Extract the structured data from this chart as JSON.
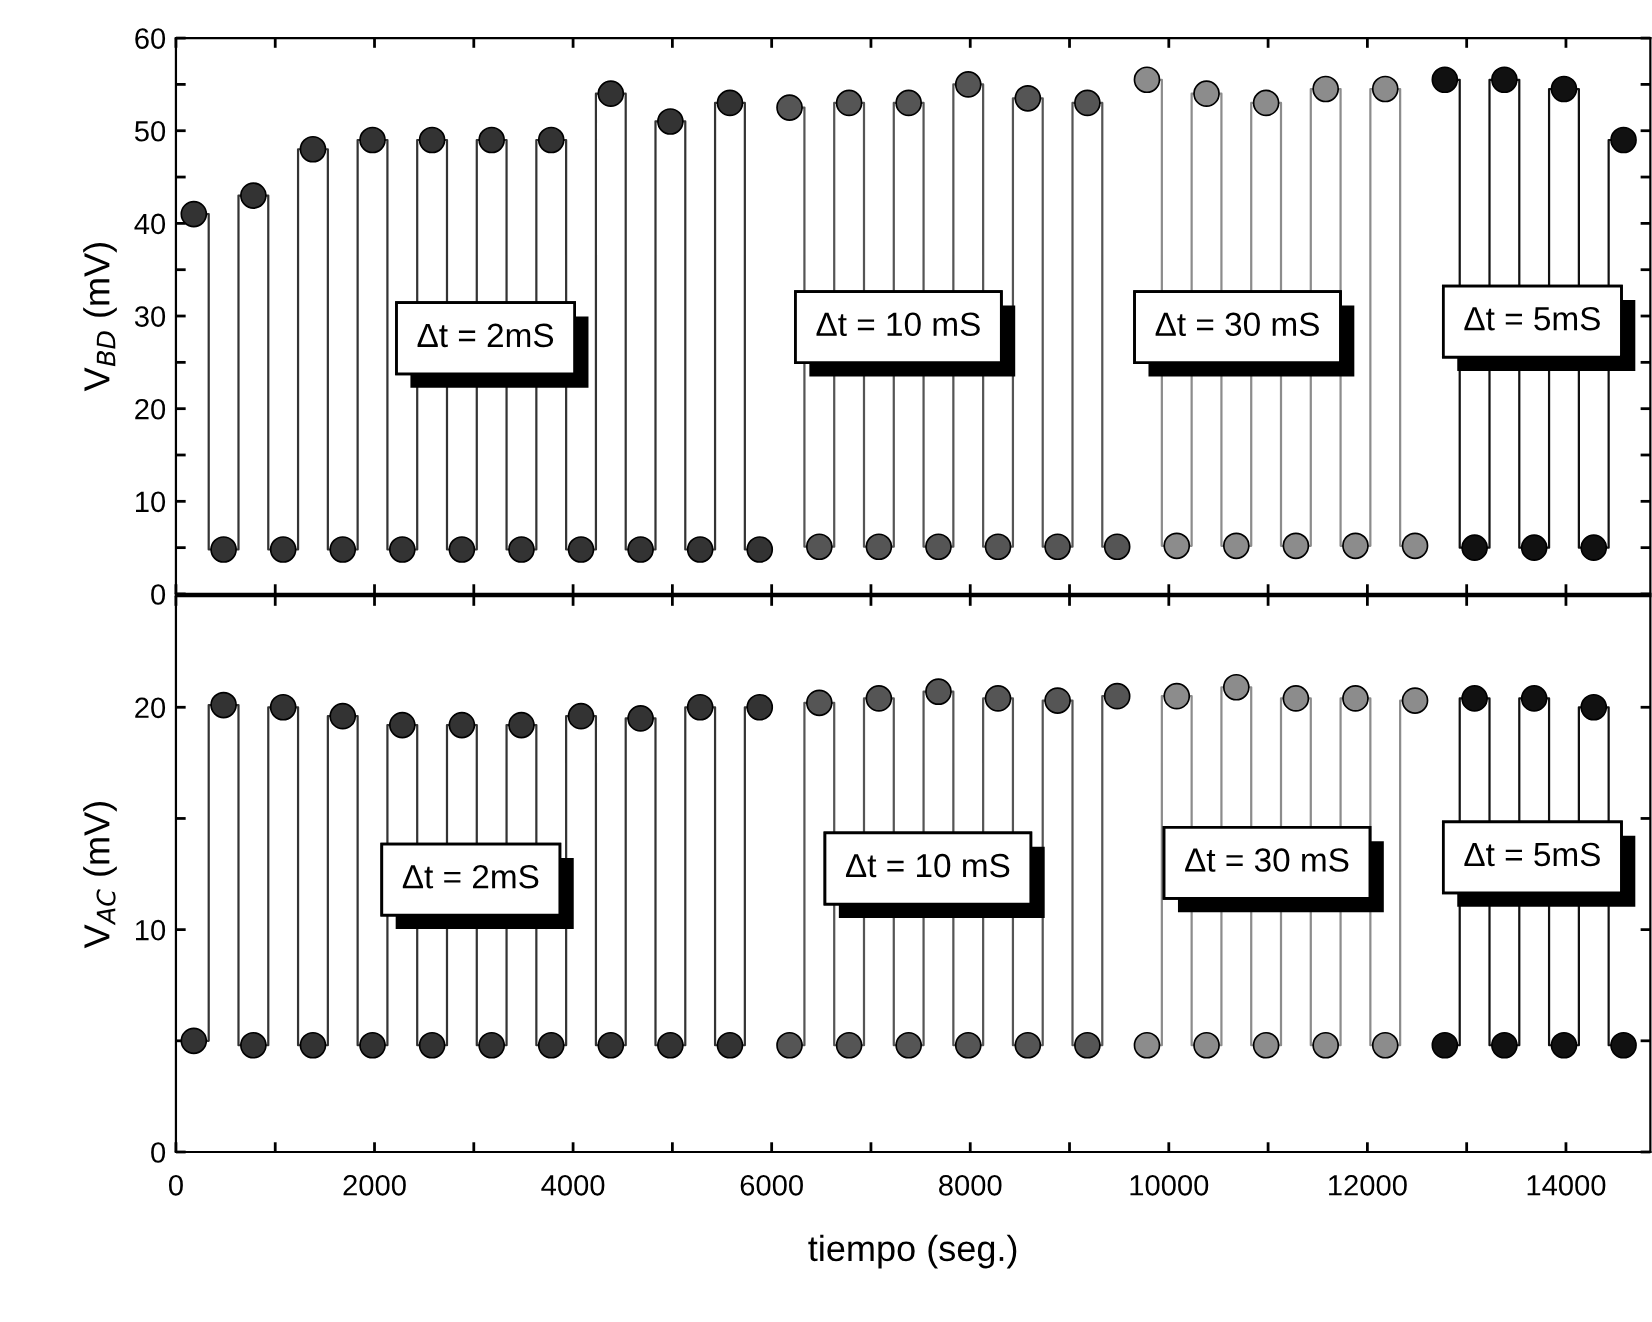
{
  "chart_data": [
    {
      "type": "step",
      "ylabel": "V$_{BD}$ (mV)",
      "marker": "circle",
      "tick_labels": "y",
      "xlim": [
        0,
        14850
      ],
      "xticks": [
        0,
        {
          "value": 1000,
          "label": null
        },
        2000,
        {
          "value": 3000,
          "label": null
        },
        4000,
        {
          "value": 5000,
          "label": null
        },
        6000,
        {
          "value": 7000,
          "label": null
        },
        8000,
        {
          "value": 9000,
          "label": null
        },
        10000,
        {
          "value": 11000,
          "label": null
        },
        12000,
        {
          "value": 13000,
          "label": null
        },
        14000
      ],
      "ylim": [
        0,
        60
      ],
      "yticks": [
        0,
        {
          "value": 5,
          "label": null
        },
        10,
        {
          "value": 15,
          "label": null
        },
        20,
        {
          "value": 25,
          "label": null
        },
        30,
        {
          "value": 35,
          "label": null
        },
        40,
        {
          "value": 45,
          "label": null
        },
        50,
        {
          "value": 55,
          "label": null
        },
        60
      ],
      "annotations": [
        "Δt = 2mS",
        "Δt = 10 mS",
        "Δt = 30 mS",
        "Δt = 5mS"
      ],
      "series": [
        {
          "color": "#333333",
          "x": [
            180,
            480,
            780,
            1080,
            1380,
            1680,
            1980,
            2280,
            2580,
            2880,
            3180,
            3480,
            3780,
            4080,
            4380,
            4680,
            4980,
            5280,
            5580,
            5880
          ],
          "values": [
            41,
            4.8,
            43,
            4.8,
            48,
            4.8,
            49,
            4.8,
            49,
            4.8,
            49,
            4.8,
            49,
            4.8,
            54,
            4.8,
            51,
            4.8,
            53,
            4.8
          ]
        },
        {
          "color": "#555555",
          "x": [
            6180,
            6480,
            6780,
            7080,
            7380,
            7680,
            7980,
            8280,
            8580,
            8880,
            9180,
            9480
          ],
          "values": [
            52.5,
            5.1,
            53,
            5.1,
            53,
            5.1,
            55,
            5.1,
            53.5,
            5.1,
            53,
            5.1
          ]
        },
        {
          "color": "#8c8c8c",
          "x": [
            9780,
            10080,
            10380,
            10680,
            10980,
            11280,
            11580,
            11880,
            12180,
            12480
          ],
          "values": [
            55.5,
            5.2,
            54,
            5.2,
            53,
            5.2,
            54.5,
            5.2,
            54.5,
            5.2
          ]
        },
        {
          "color": "#111111",
          "x": [
            12780,
            13080,
            13380,
            13680,
            13980,
            14280,
            14580
          ],
          "values": [
            55.5,
            5.0,
            55.5,
            5.0,
            54.5,
            5.0,
            49
          ]
        }
      ]
    },
    {
      "type": "step",
      "ylabel": "V$_{AC}$ (mV)",
      "xlabel": "tiempo (seg.)",
      "marker": "circle",
      "xlim": [
        0,
        14850
      ],
      "xticks": [
        0,
        {
          "value": 1000,
          "label": null
        },
        2000,
        {
          "value": 3000,
          "label": null
        },
        4000,
        {
          "value": 5000,
          "label": null
        },
        6000,
        {
          "value": 7000,
          "label": null
        },
        8000,
        {
          "value": 9000,
          "label": null
        },
        10000,
        {
          "value": 11000,
          "label": null
        },
        12000,
        {
          "value": 13000,
          "label": null
        },
        14000
      ],
      "ylim": [
        0,
        25
      ],
      "yticks": [
        0,
        {
          "value": 5,
          "label": null
        },
        10,
        {
          "value": 15,
          "label": null
        },
        20
      ],
      "annotations": [
        "Δt = 2mS",
        "Δt = 10 mS",
        "Δt = 30 mS",
        "Δt = 5mS"
      ],
      "series": [
        {
          "color": "#333333",
          "x": [
            180,
            480,
            780,
            1080,
            1380,
            1680,
            1980,
            2280,
            2580,
            2880,
            3180,
            3480,
            3780,
            4080,
            4380,
            4680,
            4980,
            5280,
            5580,
            5880
          ],
          "values": [
            5.0,
            20.1,
            4.8,
            20.0,
            4.8,
            19.6,
            4.8,
            19.2,
            4.8,
            19.2,
            4.8,
            19.2,
            4.8,
            19.6,
            4.8,
            19.5,
            4.8,
            20.0,
            4.8,
            20.0
          ]
        },
        {
          "color": "#555555",
          "x": [
            6180,
            6480,
            6780,
            7080,
            7380,
            7680,
            7980,
            8280,
            8580,
            8880,
            9180,
            9480
          ],
          "values": [
            4.8,
            20.2,
            4.8,
            20.4,
            4.8,
            20.7,
            4.8,
            20.4,
            4.8,
            20.3,
            4.8,
            20.5
          ]
        },
        {
          "color": "#8c8c8c",
          "x": [
            9780,
            10080,
            10380,
            10680,
            10980,
            11280,
            11580,
            11880,
            12180,
            12480
          ],
          "values": [
            4.8,
            20.5,
            4.8,
            20.9,
            4.8,
            20.4,
            4.8,
            20.4,
            4.8,
            20.3
          ]
        },
        {
          "color": "#111111",
          "x": [
            12780,
            13080,
            13380,
            13680,
            13980,
            14280,
            14580
          ],
          "values": [
            4.8,
            20.4,
            4.8,
            20.4,
            4.8,
            20.0,
            4.8
          ]
        }
      ]
    }
  ]
}
